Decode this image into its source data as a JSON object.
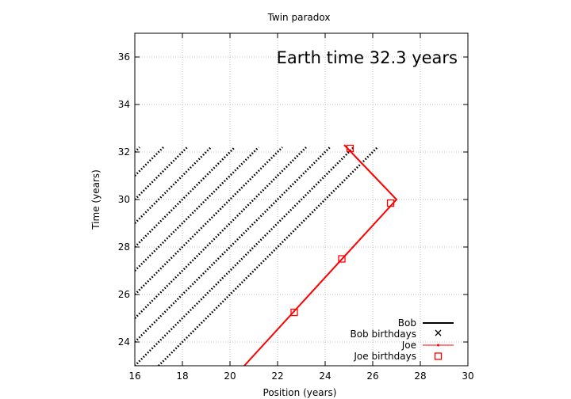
{
  "chart_data": {
    "type": "line",
    "title": "Twin paradox",
    "xlabel": "Position (years)",
    "ylabel": "Time (years)",
    "xlim": [
      16,
      30
    ],
    "ylim": [
      23,
      37
    ],
    "xticks": [
      16,
      18,
      20,
      22,
      24,
      26,
      28,
      30
    ],
    "yticks": [
      24,
      26,
      28,
      30,
      32,
      34,
      36
    ],
    "grid": true,
    "legend_position": "bottom-right",
    "annotation": "Earth time 32.3 years",
    "current_time": 32.3,
    "legend": [
      {
        "label": "Bob",
        "color": "#000000",
        "marker": "line"
      },
      {
        "label": "Bob birthdays",
        "color": "#000000",
        "marker": "x"
      },
      {
        "label": "Joe",
        "color": "#ff0000",
        "marker": "line"
      },
      {
        "label": "Joe birthdays",
        "color": "#ff0000",
        "marker": "square"
      }
    ],
    "series": [
      {
        "name": "Bob",
        "description_type": "diagonal dotted lines of slope 1 (light-speed worldlines), one per year",
        "color": "#000000",
        "line_offsets": [
          6,
          7,
          8,
          9,
          10,
          11,
          12,
          13,
          14,
          15,
          16,
          17,
          18,
          19,
          20,
          21,
          22,
          23,
          24,
          25
        ],
        "y_max": 32.2
      },
      {
        "name": "Joe",
        "color": "#ff0000",
        "points": [
          [
            20.6,
            23.0
          ],
          [
            27.0,
            30.0
          ],
          [
            24.8,
            32.3
          ]
        ]
      },
      {
        "name": "Joe birthdays",
        "color": "#ff0000",
        "points": [
          [
            22.7,
            25.25
          ],
          [
            24.7,
            27.5
          ],
          [
            26.75,
            29.85
          ],
          [
            25.05,
            32.15
          ]
        ]
      }
    ]
  }
}
